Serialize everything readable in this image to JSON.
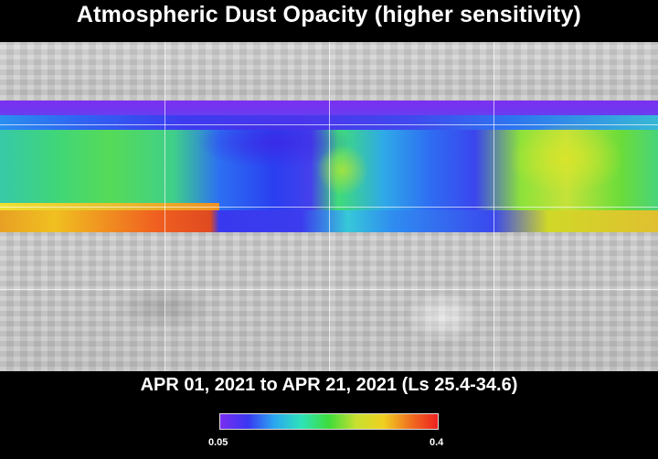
{
  "title": "Atmospheric Dust Opacity (higher sensitivity)",
  "subtitle": "APR 01, 2021 to APR 21, 2021 (Ls 25.4-34.6)",
  "colorbar": {
    "min_label": "0.05",
    "max_label": "0.4",
    "colors": [
      "#7a2ef0",
      "#3a36f2",
      "#2aa8f0",
      "#2ee3b8",
      "#3edc3a",
      "#c8e030",
      "#f0d020",
      "#f07020",
      "#ee2020"
    ]
  },
  "map": {
    "grid_lines": true
  }
}
